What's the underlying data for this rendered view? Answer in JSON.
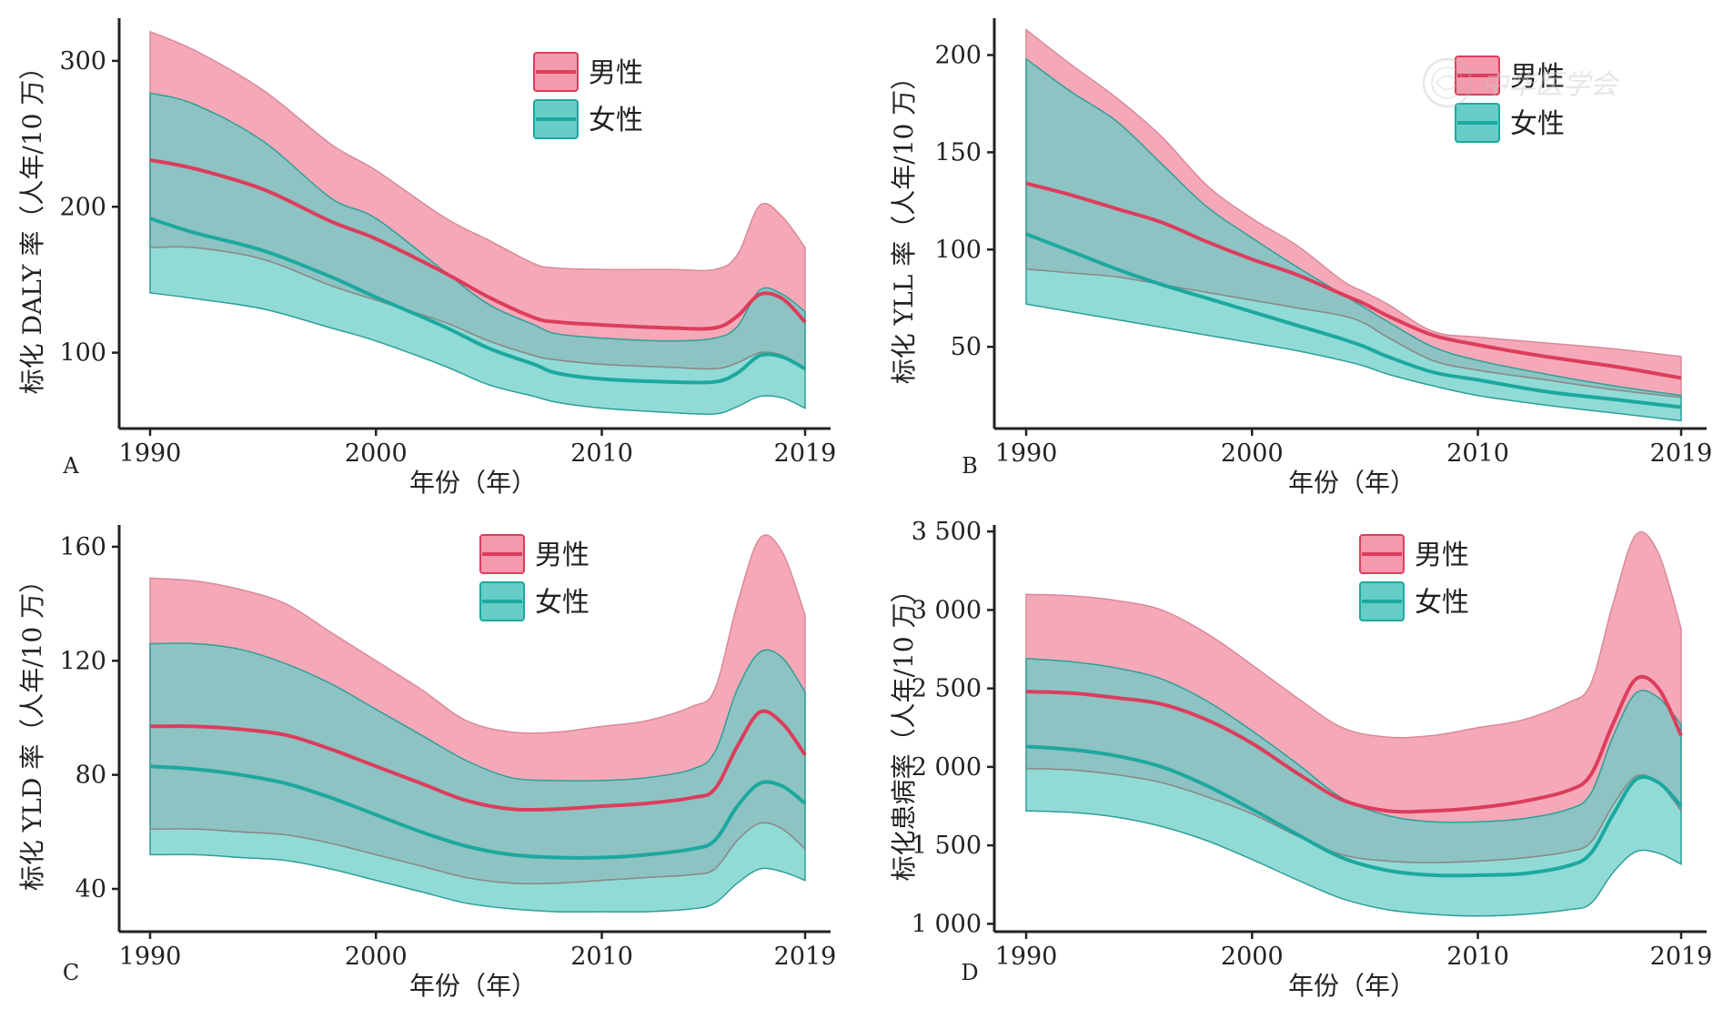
{
  "colors": {
    "male_line": "#dc3d5c",
    "male_band": "#f39aac",
    "female_line": "#1da89f",
    "female_band": "#66cdc7",
    "overlap_band": "#7fb3aa",
    "axis": "#222222"
  },
  "xlabel": "年份（年）",
  "legend": {
    "male": "男性",
    "female": "女性"
  },
  "watermark": {
    "text": "中华医学会",
    "icon": "seal-icon"
  },
  "chart_data": [
    {
      "id": "A",
      "type": "area",
      "panel_label": "A",
      "ylabel": "标化 DALY 率（人年/10 万）",
      "xlabel": "年份（年）",
      "xlim": [
        1990,
        2019
      ],
      "ylim": [
        48,
        328
      ],
      "xticks": [
        1990,
        2000,
        2010,
        2019
      ],
      "yticks": [
        100,
        200,
        300
      ],
      "ytick_labels": [
        "100",
        "200",
        "300"
      ],
      "legend_position": "top-center",
      "series": [
        {
          "name": "男性",
          "x": [
            1990,
            1992,
            1995,
            1998,
            2000,
            2003,
            2005,
            2007,
            2008,
            2010,
            2013,
            2015,
            2016,
            2017,
            2018,
            2019
          ],
          "mean": [
            232,
            226,
            212,
            190,
            178,
            155,
            138,
            124,
            121,
            119,
            117,
            117,
            125,
            140,
            137,
            121
          ],
          "upper": [
            320,
            307,
            280,
            243,
            225,
            193,
            177,
            161,
            158,
            157,
            157,
            157,
            167,
            201,
            193,
            172
          ],
          "lower": [
            172,
            172,
            164,
            146,
            136,
            121,
            108,
            98,
            95,
            92,
            90,
            89,
            93,
            100,
            98,
            88
          ]
        },
        {
          "name": "女性",
          "x": [
            1990,
            1992,
            1995,
            1998,
            2000,
            2003,
            2005,
            2007,
            2008,
            2010,
            2013,
            2015,
            2016,
            2017,
            2018,
            2019
          ],
          "mean": [
            192,
            182,
            170,
            152,
            138,
            118,
            103,
            92,
            86,
            82,
            80,
            80,
            86,
            98,
            97,
            89
          ],
          "upper": [
            278,
            270,
            245,
            206,
            192,
            156,
            133,
            119,
            113,
            110,
            108,
            110,
            118,
            143,
            140,
            128
          ],
          "lower": [
            141,
            137,
            130,
            117,
            108,
            91,
            78,
            70,
            66,
            62,
            59,
            58,
            63,
            70,
            69,
            62
          ]
        }
      ]
    },
    {
      "id": "B",
      "type": "area",
      "panel_label": "B",
      "ylabel": "标化 YLL 率（人年/10 万）",
      "xlabel": "年份（年）",
      "xlim": [
        1990,
        2019
      ],
      "ylim": [
        8,
        218
      ],
      "xticks": [
        1990,
        2000,
        2010,
        2019
      ],
      "yticks": [
        50,
        100,
        150,
        200
      ],
      "ytick_labels": [
        "50",
        "100",
        "150",
        "200"
      ],
      "legend_position": "top-right",
      "series": [
        {
          "name": "男性",
          "x": [
            1990,
            1992,
            1994,
            1996,
            1998,
            2000,
            2002,
            2004,
            2005,
            2006,
            2008,
            2010,
            2013,
            2016,
            2019
          ],
          "mean": [
            134,
            128,
            121,
            114,
            104,
            95,
            87,
            77,
            72,
            66,
            56,
            51,
            45,
            40,
            34
          ],
          "upper": [
            213,
            195,
            178,
            158,
            133,
            116,
            102,
            84,
            78,
            72,
            58,
            55,
            52,
            49,
            45
          ],
          "lower": [
            90,
            88,
            86,
            82,
            78,
            74,
            70,
            66,
            62,
            55,
            43,
            38,
            33,
            28,
            24
          ]
        },
        {
          "name": "女性",
          "x": [
            1990,
            1992,
            1994,
            1996,
            1998,
            2000,
            2002,
            2004,
            2005,
            2006,
            2008,
            2010,
            2013,
            2016,
            2019
          ],
          "mean": [
            108,
            99,
            90,
            82,
            75,
            68,
            61,
            54,
            50,
            45,
            37,
            33,
            27,
            23,
            19
          ],
          "upper": [
            198,
            181,
            166,
            144,
            122,
            106,
            91,
            77,
            70,
            63,
            50,
            43,
            36,
            30,
            25
          ],
          "lower": [
            72,
            68,
            64,
            60,
            56,
            52,
            48,
            43,
            40,
            36,
            30,
            25,
            20,
            16,
            12
          ]
        }
      ]
    },
    {
      "id": "C",
      "type": "area",
      "panel_label": "C",
      "ylabel": "标化 YLD 率（人年/10 万）",
      "xlabel": "年份（年）",
      "xlim": [
        1990,
        2019
      ],
      "ylim": [
        25,
        167
      ],
      "xticks": [
        1990,
        2000,
        2010,
        2019
      ],
      "yticks": [
        40,
        80,
        120,
        160
      ],
      "ytick_labels": [
        "40",
        "80",
        "120",
        "160"
      ],
      "legend_position": "top-center",
      "series": [
        {
          "name": "男性",
          "x": [
            1990,
            1992,
            1994,
            1996,
            1998,
            2000,
            2002,
            2004,
            2006,
            2008,
            2010,
            2012,
            2014,
            2015,
            2016,
            2017,
            2018,
            2019
          ],
          "mean": [
            97,
            97,
            96,
            94,
            89,
            83,
            77,
            71,
            68,
            68,
            69,
            70,
            72,
            75,
            90,
            102,
            98,
            87
          ],
          "upper": [
            149,
            148,
            145,
            140,
            130,
            120,
            110,
            99,
            95,
            95,
            97,
            99,
            104,
            110,
            140,
            163,
            158,
            136
          ],
          "lower": [
            61,
            61,
            60,
            59,
            56,
            52,
            48,
            44,
            42,
            42,
            43,
            44,
            45,
            47,
            57,
            63,
            61,
            54
          ]
        },
        {
          "name": "女性",
          "x": [
            1990,
            1992,
            1994,
            1996,
            1998,
            2000,
            2002,
            2004,
            2006,
            2008,
            2010,
            2012,
            2014,
            2015,
            2016,
            2017,
            2018,
            2019
          ],
          "mean": [
            83,
            82,
            80,
            77,
            72,
            66,
            60,
            55,
            52,
            51,
            51,
            52,
            54,
            57,
            69,
            77,
            76,
            70
          ],
          "upper": [
            126,
            126,
            124,
            119,
            112,
            103,
            94,
            85,
            79,
            78,
            78,
            79,
            82,
            88,
            110,
            123,
            121,
            109
          ],
          "lower": [
            52,
            52,
            51,
            50,
            47,
            43,
            39,
            35,
            33,
            32,
            32,
            32,
            33,
            35,
            42,
            47,
            46,
            43
          ]
        }
      ]
    },
    {
      "id": "D",
      "type": "area",
      "panel_label": "D",
      "ylabel": "标化患病率（人年/10 万）",
      "xlabel": "年份（年）",
      "xlim": [
        1990,
        2019
      ],
      "ylim": [
        950,
        3530
      ],
      "xticks": [
        1990,
        2000,
        2010,
        2019
      ],
      "yticks": [
        1000,
        1500,
        2000,
        2500,
        3000,
        3500
      ],
      "ytick_labels": [
        "1 000",
        "1 500",
        "2 000",
        "2 500",
        "3 000",
        "3 500"
      ],
      "legend_position": "top-center",
      "series": [
        {
          "name": "男性",
          "x": [
            1990,
            1992,
            1994,
            1996,
            1998,
            2000,
            2002,
            2004,
            2006,
            2008,
            2010,
            2012,
            2014,
            2015,
            2016,
            2017,
            2018,
            2019
          ],
          "mean": [
            2480,
            2470,
            2440,
            2400,
            2300,
            2150,
            1960,
            1790,
            1720,
            1720,
            1740,
            1780,
            1850,
            1950,
            2280,
            2560,
            2500,
            2200
          ],
          "upper": [
            3100,
            3090,
            3060,
            3000,
            2850,
            2650,
            2440,
            2250,
            2190,
            2200,
            2250,
            2300,
            2410,
            2530,
            3050,
            3480,
            3360,
            2880
          ],
          "lower": [
            1990,
            1980,
            1950,
            1900,
            1810,
            1700,
            1560,
            1440,
            1400,
            1390,
            1400,
            1420,
            1460,
            1520,
            1760,
            1940,
            1900,
            1720
          ]
        },
        {
          "name": "女性",
          "x": [
            1990,
            1992,
            1994,
            1996,
            1998,
            2000,
            2002,
            2004,
            2006,
            2008,
            2010,
            2012,
            2014,
            2015,
            2016,
            2017,
            2018,
            2019
          ],
          "mean": [
            2130,
            2110,
            2070,
            2000,
            1880,
            1730,
            1570,
            1420,
            1340,
            1310,
            1310,
            1320,
            1370,
            1450,
            1700,
            1920,
            1900,
            1750
          ],
          "upper": [
            2690,
            2670,
            2630,
            2560,
            2420,
            2230,
            2020,
            1800,
            1690,
            1650,
            1650,
            1670,
            1730,
            1830,
            2200,
            2470,
            2440,
            2270
          ],
          "lower": [
            1720,
            1710,
            1680,
            1620,
            1530,
            1410,
            1280,
            1160,
            1090,
            1060,
            1050,
            1060,
            1090,
            1130,
            1330,
            1460,
            1450,
            1380
          ]
        }
      ]
    }
  ]
}
